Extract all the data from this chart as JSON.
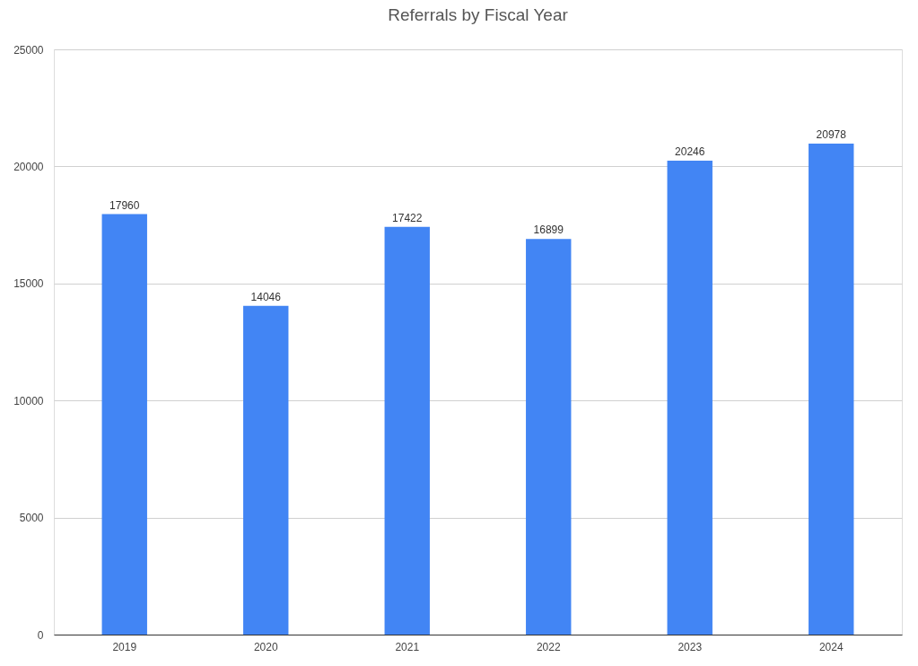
{
  "chart_data": {
    "type": "bar",
    "title": "Referrals by Fiscal Year",
    "categories": [
      "2019",
      "2020",
      "2021",
      "2022",
      "2023",
      "2024"
    ],
    "values": [
      17960,
      14046,
      17422,
      16899,
      20246,
      20978
    ],
    "color": "#4285f4",
    "ylim": [
      0,
      25000
    ],
    "yticks": [
      0,
      5000,
      10000,
      15000,
      20000,
      25000
    ],
    "grid": "y",
    "data_labels": true
  }
}
